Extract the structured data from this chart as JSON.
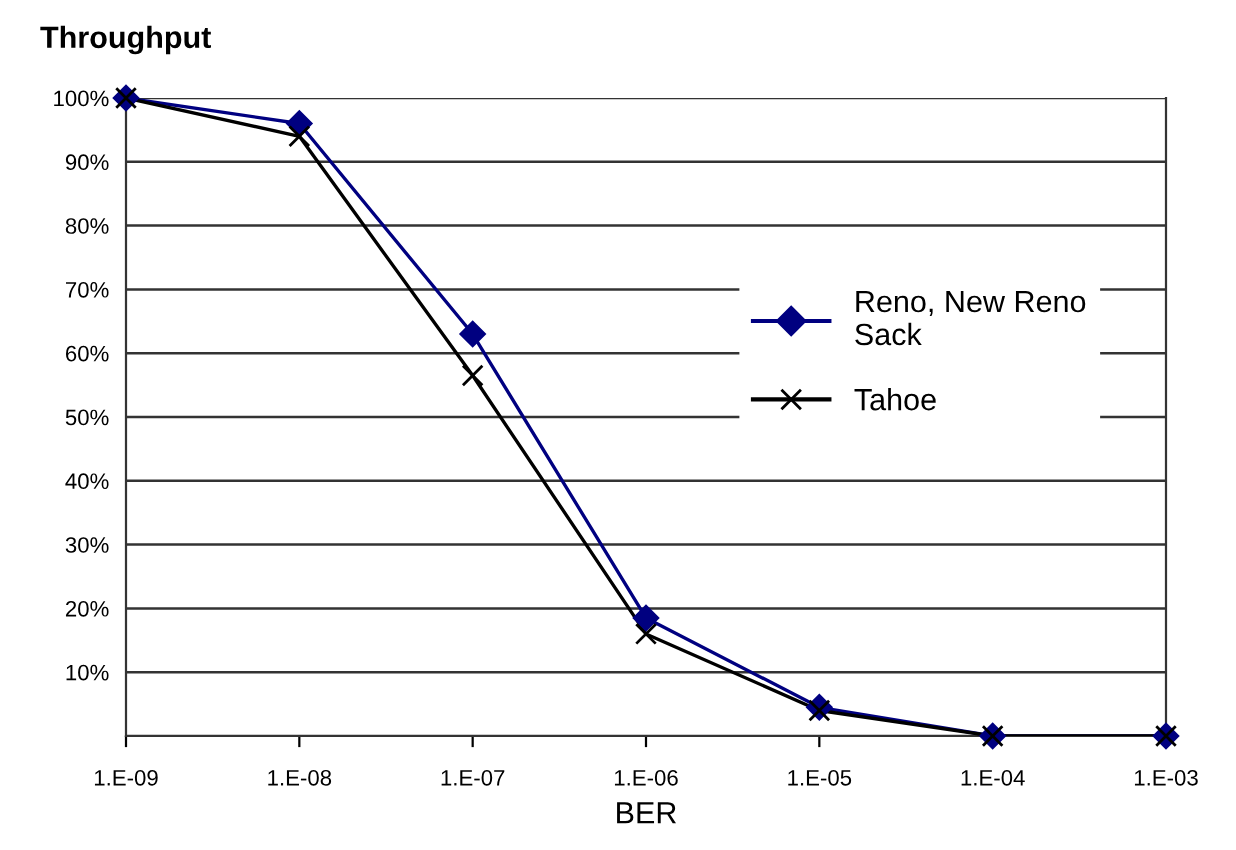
{
  "chart_data": {
    "type": "line",
    "title": "Throughput",
    "xlabel": "BER",
    "categories": [
      "1.E-09",
      "1.E-08",
      "1.E-07",
      "1.E-06",
      "1.E-05",
      "1.E-04",
      "1.E-03"
    ],
    "series": [
      {
        "name": "Reno, New Reno\nSack",
        "color": "#000080",
        "marker": "diamond",
        "values": [
          100,
          96,
          63,
          18.5,
          4.5,
          0,
          0
        ]
      },
      {
        "name": "Tahoe",
        "color": "#000000",
        "marker": "cross",
        "values": [
          100,
          94,
          56.5,
          16,
          4,
          0,
          0
        ]
      }
    ],
    "ylim": [
      0,
      100
    ],
    "yticks": [
      {
        "value": 0,
        "label": null
      },
      {
        "value": 10,
        "label": "10%"
      },
      {
        "value": 20,
        "label": "20%"
      },
      {
        "value": 30,
        "label": "30%"
      },
      {
        "value": 40,
        "label": "40%"
      },
      {
        "value": 50,
        "label": "50%"
      },
      {
        "value": 60,
        "label": "60%"
      },
      {
        "value": 70,
        "label": "70%"
      },
      {
        "value": 80,
        "label": "80%"
      },
      {
        "value": 90,
        "label": "90%"
      },
      {
        "value": 100,
        "label": "100%"
      }
    ],
    "grid": "y",
    "legend": "right",
    "line_style": "solid"
  }
}
